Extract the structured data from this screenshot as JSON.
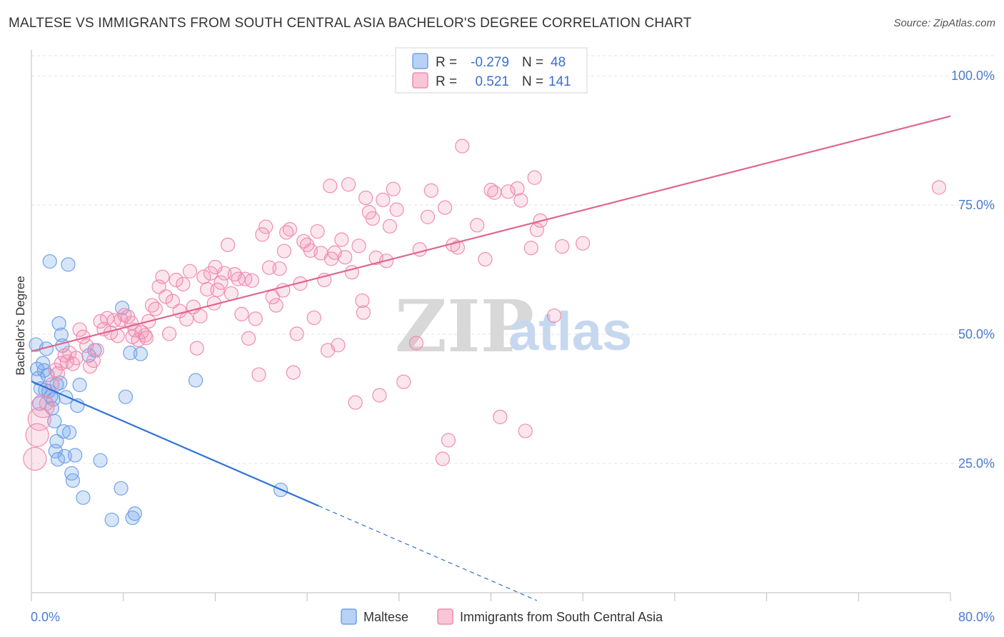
{
  "title": "MALTESE VS IMMIGRANTS FROM SOUTH CENTRAL ASIA BACHELOR'S DEGREE CORRELATION CHART",
  "source": "Source: ZipAtlas.com",
  "watermark": {
    "zip": "ZIP",
    "atlas": "atlas"
  },
  "colors": {
    "blue": "#6fa3e8",
    "blue_line": "#2f72d6",
    "pink": "#f08cb0",
    "pink_line": "#e0658f",
    "grid": "#e3e3e3",
    "tick_text": "#4a7bd0"
  },
  "legend": {
    "rows": [
      {
        "r_label": "R =",
        "r_value": "-0.279",
        "n_label": "N =",
        "n_value": "48",
        "color": "blue"
      },
      {
        "r_label": "R =",
        "r_value": "0.521",
        "n_label": "N =",
        "n_value": "141",
        "color": "pink"
      }
    ]
  },
  "bottom_legend": [
    {
      "label": "Maltese",
      "color": "blue"
    },
    {
      "label": "Immigrants from South Central Asia",
      "color": "pink"
    }
  ],
  "chart_data": {
    "type": "scatter",
    "xlabel": "",
    "ylabel": "Bachelor's Degree",
    "xlim": [
      0,
      80
    ],
    "ylim": [
      0,
      105
    ],
    "x_tick_labels": [
      "0.0%",
      "80.0%"
    ],
    "y_ticks": [
      25,
      50,
      75,
      100
    ],
    "y_tick_labels": [
      "25.0%",
      "50.0%",
      "75.0%",
      "100.0%"
    ],
    "grid": "horizontal dashed",
    "legend_position": "top-center",
    "series": [
      {
        "name": "Maltese",
        "color": "blue",
        "trend": {
          "x0": 0,
          "y0": 40.9,
          "x1": 25.0,
          "y1": 16.8,
          "dashed_to_x": 44.0
        },
        "points": [
          [
            0.5,
            43.3
          ],
          [
            0.6,
            41.5
          ],
          [
            0.8,
            39.5
          ],
          [
            1.0,
            44.4
          ],
          [
            1.2,
            39.2
          ],
          [
            1.3,
            47.2
          ],
          [
            1.4,
            42.1
          ],
          [
            1.5,
            39.0
          ],
          [
            1.6,
            64.1
          ],
          [
            1.7,
            38.0
          ],
          [
            1.8,
            35.7
          ],
          [
            2.0,
            33.2
          ],
          [
            2.1,
            27.4
          ],
          [
            2.2,
            29.3
          ],
          [
            2.3,
            25.8
          ],
          [
            2.4,
            52.1
          ],
          [
            2.5,
            40.6
          ],
          [
            2.6,
            49.9
          ],
          [
            2.7,
            47.8
          ],
          [
            2.8,
            31.2
          ],
          [
            3.0,
            37.8
          ],
          [
            3.2,
            63.5
          ],
          [
            3.5,
            23.1
          ],
          [
            3.6,
            21.7
          ],
          [
            3.8,
            26.6
          ],
          [
            4.0,
            36.2
          ],
          [
            4.2,
            40.2
          ],
          [
            4.5,
            18.4
          ],
          [
            5.0,
            45.9
          ],
          [
            5.5,
            46.9
          ],
          [
            6.0,
            25.6
          ],
          [
            7.0,
            14.1
          ],
          [
            7.8,
            20.2
          ],
          [
            7.9,
            55.1
          ],
          [
            8.2,
            37.9
          ],
          [
            8.6,
            46.4
          ],
          [
            8.8,
            14.5
          ],
          [
            9.0,
            15.3
          ],
          [
            9.5,
            46.2
          ],
          [
            14.3,
            41.1
          ],
          [
            21.7,
            19.9
          ],
          [
            0.4,
            48.0
          ],
          [
            1.1,
            43.0
          ],
          [
            2.9,
            26.4
          ],
          [
            3.3,
            31.0
          ],
          [
            1.9,
            37.4
          ],
          [
            0.7,
            36.6
          ],
          [
            2.2,
            40.3
          ]
        ]
      },
      {
        "name": "Immigrants from South Central Asia",
        "color": "pink",
        "trend": {
          "x0": 0,
          "y0": 46.7,
          "x1": 80,
          "y1": 92.2
        },
        "points": [
          [
            0.3,
            25.9
          ],
          [
            0.5,
            30.5
          ],
          [
            0.7,
            33.6
          ],
          [
            1.0,
            36.1
          ],
          [
            1.3,
            36.6
          ],
          [
            1.8,
            40.3
          ],
          [
            2.1,
            43.1
          ],
          [
            2.3,
            42.4
          ],
          [
            2.6,
            44.4
          ],
          [
            2.9,
            45.9
          ],
          [
            3.1,
            44.7
          ],
          [
            3.3,
            46.4
          ],
          [
            3.6,
            44.3
          ],
          [
            3.9,
            45.4
          ],
          [
            4.2,
            50.9
          ],
          [
            4.5,
            49.5
          ],
          [
            4.8,
            47.8
          ],
          [
            5.1,
            43.8
          ],
          [
            5.4,
            44.9
          ],
          [
            5.7,
            46.9
          ],
          [
            6.0,
            52.5
          ],
          [
            6.3,
            51.0
          ],
          [
            6.6,
            53.1
          ],
          [
            6.9,
            50.3
          ],
          [
            7.2,
            52.7
          ],
          [
            7.5,
            49.7
          ],
          [
            7.8,
            52.8
          ],
          [
            8.1,
            53.7
          ],
          [
            8.4,
            53.4
          ],
          [
            8.7,
            52.2
          ],
          [
            9.0,
            50.8
          ],
          [
            9.3,
            48.9
          ],
          [
            9.6,
            50.4
          ],
          [
            9.9,
            49.8
          ],
          [
            10.2,
            52.5
          ],
          [
            10.5,
            55.6
          ],
          [
            10.8,
            54.9
          ],
          [
            11.1,
            59.2
          ],
          [
            11.4,
            61.1
          ],
          [
            11.7,
            57.3
          ],
          [
            12.0,
            50.1
          ],
          [
            12.3,
            56.4
          ],
          [
            12.6,
            60.5
          ],
          [
            12.9,
            54.5
          ],
          [
            13.2,
            59.7
          ],
          [
            13.5,
            52.9
          ],
          [
            13.8,
            62.2
          ],
          [
            14.1,
            55.3
          ],
          [
            14.4,
            47.3
          ],
          [
            14.7,
            53.5
          ],
          [
            15.0,
            61.1
          ],
          [
            15.3,
            58.7
          ],
          [
            15.6,
            61.8
          ],
          [
            15.9,
            56.0
          ],
          [
            16.2,
            58.6
          ],
          [
            16.5,
            60.0
          ],
          [
            16.8,
            61.8
          ],
          [
            17.1,
            67.3
          ],
          [
            17.4,
            57.9
          ],
          [
            17.7,
            61.6
          ],
          [
            18.0,
            60.7
          ],
          [
            18.3,
            53.9
          ],
          [
            18.6,
            60.7
          ],
          [
            18.9,
            49.2
          ],
          [
            19.2,
            60.4
          ],
          [
            19.5,
            53.0
          ],
          [
            19.8,
            42.2
          ],
          [
            20.1,
            69.3
          ],
          [
            20.4,
            70.8
          ],
          [
            20.7,
            62.9
          ],
          [
            21.0,
            57.2
          ],
          [
            21.3,
            55.6
          ],
          [
            21.6,
            62.7
          ],
          [
            21.9,
            58.5
          ],
          [
            22.2,
            69.7
          ],
          [
            22.5,
            70.3
          ],
          [
            22.8,
            42.6
          ],
          [
            23.1,
            50.1
          ],
          [
            23.4,
            59.8
          ],
          [
            23.7,
            68.0
          ],
          [
            24.0,
            67.3
          ],
          [
            24.3,
            66.2
          ],
          [
            24.6,
            53.2
          ],
          [
            24.9,
            69.9
          ],
          [
            25.2,
            65.7
          ],
          [
            25.5,
            60.5
          ],
          [
            25.8,
            46.9
          ],
          [
            26.1,
            64.6
          ],
          [
            26.4,
            65.8
          ],
          [
            26.7,
            47.9
          ],
          [
            27.0,
            68.3
          ],
          [
            27.3,
            64.9
          ],
          [
            27.6,
            79.0
          ],
          [
            27.9,
            62.0
          ],
          [
            28.2,
            36.8
          ],
          [
            28.5,
            67.1
          ],
          [
            28.8,
            56.5
          ],
          [
            29.1,
            76.4
          ],
          [
            29.4,
            73.6
          ],
          [
            29.7,
            72.4
          ],
          [
            30.0,
            64.8
          ],
          [
            30.3,
            38.2
          ],
          [
            30.6,
            76.0
          ],
          [
            30.9,
            64.2
          ],
          [
            31.2,
            70.9
          ],
          [
            31.5,
            78.1
          ],
          [
            32.4,
            40.8
          ],
          [
            33.5,
            48.3
          ],
          [
            33.8,
            66.4
          ],
          [
            34.5,
            72.7
          ],
          [
            34.8,
            77.8
          ],
          [
            35.8,
            25.9
          ],
          [
            36.0,
            74.5
          ],
          [
            36.3,
            29.5
          ],
          [
            36.7,
            67.3
          ],
          [
            37.5,
            86.4
          ],
          [
            38.8,
            71.1
          ],
          [
            39.5,
            64.5
          ],
          [
            40.0,
            77.9
          ],
          [
            40.3,
            77.4
          ],
          [
            40.8,
            34.0
          ],
          [
            41.5,
            77.6
          ],
          [
            42.3,
            78.2
          ],
          [
            42.6,
            75.9
          ],
          [
            43.0,
            31.3
          ],
          [
            43.5,
            66.7
          ],
          [
            43.8,
            80.3
          ],
          [
            44.0,
            70.2
          ],
          [
            44.3,
            72.0
          ],
          [
            45.5,
            53.6
          ],
          [
            46.2,
            67.0
          ],
          [
            48.0,
            67.6
          ],
          [
            79.0,
            78.4
          ],
          [
            26.0,
            78.7
          ],
          [
            28.9,
            54.2
          ],
          [
            10.0,
            49.3
          ],
          [
            8.8,
            49.5
          ],
          [
            16.0,
            63.0
          ],
          [
            22.0,
            66.1
          ],
          [
            31.8,
            74.1
          ],
          [
            37.1,
            66.8
          ]
        ]
      }
    ]
  }
}
